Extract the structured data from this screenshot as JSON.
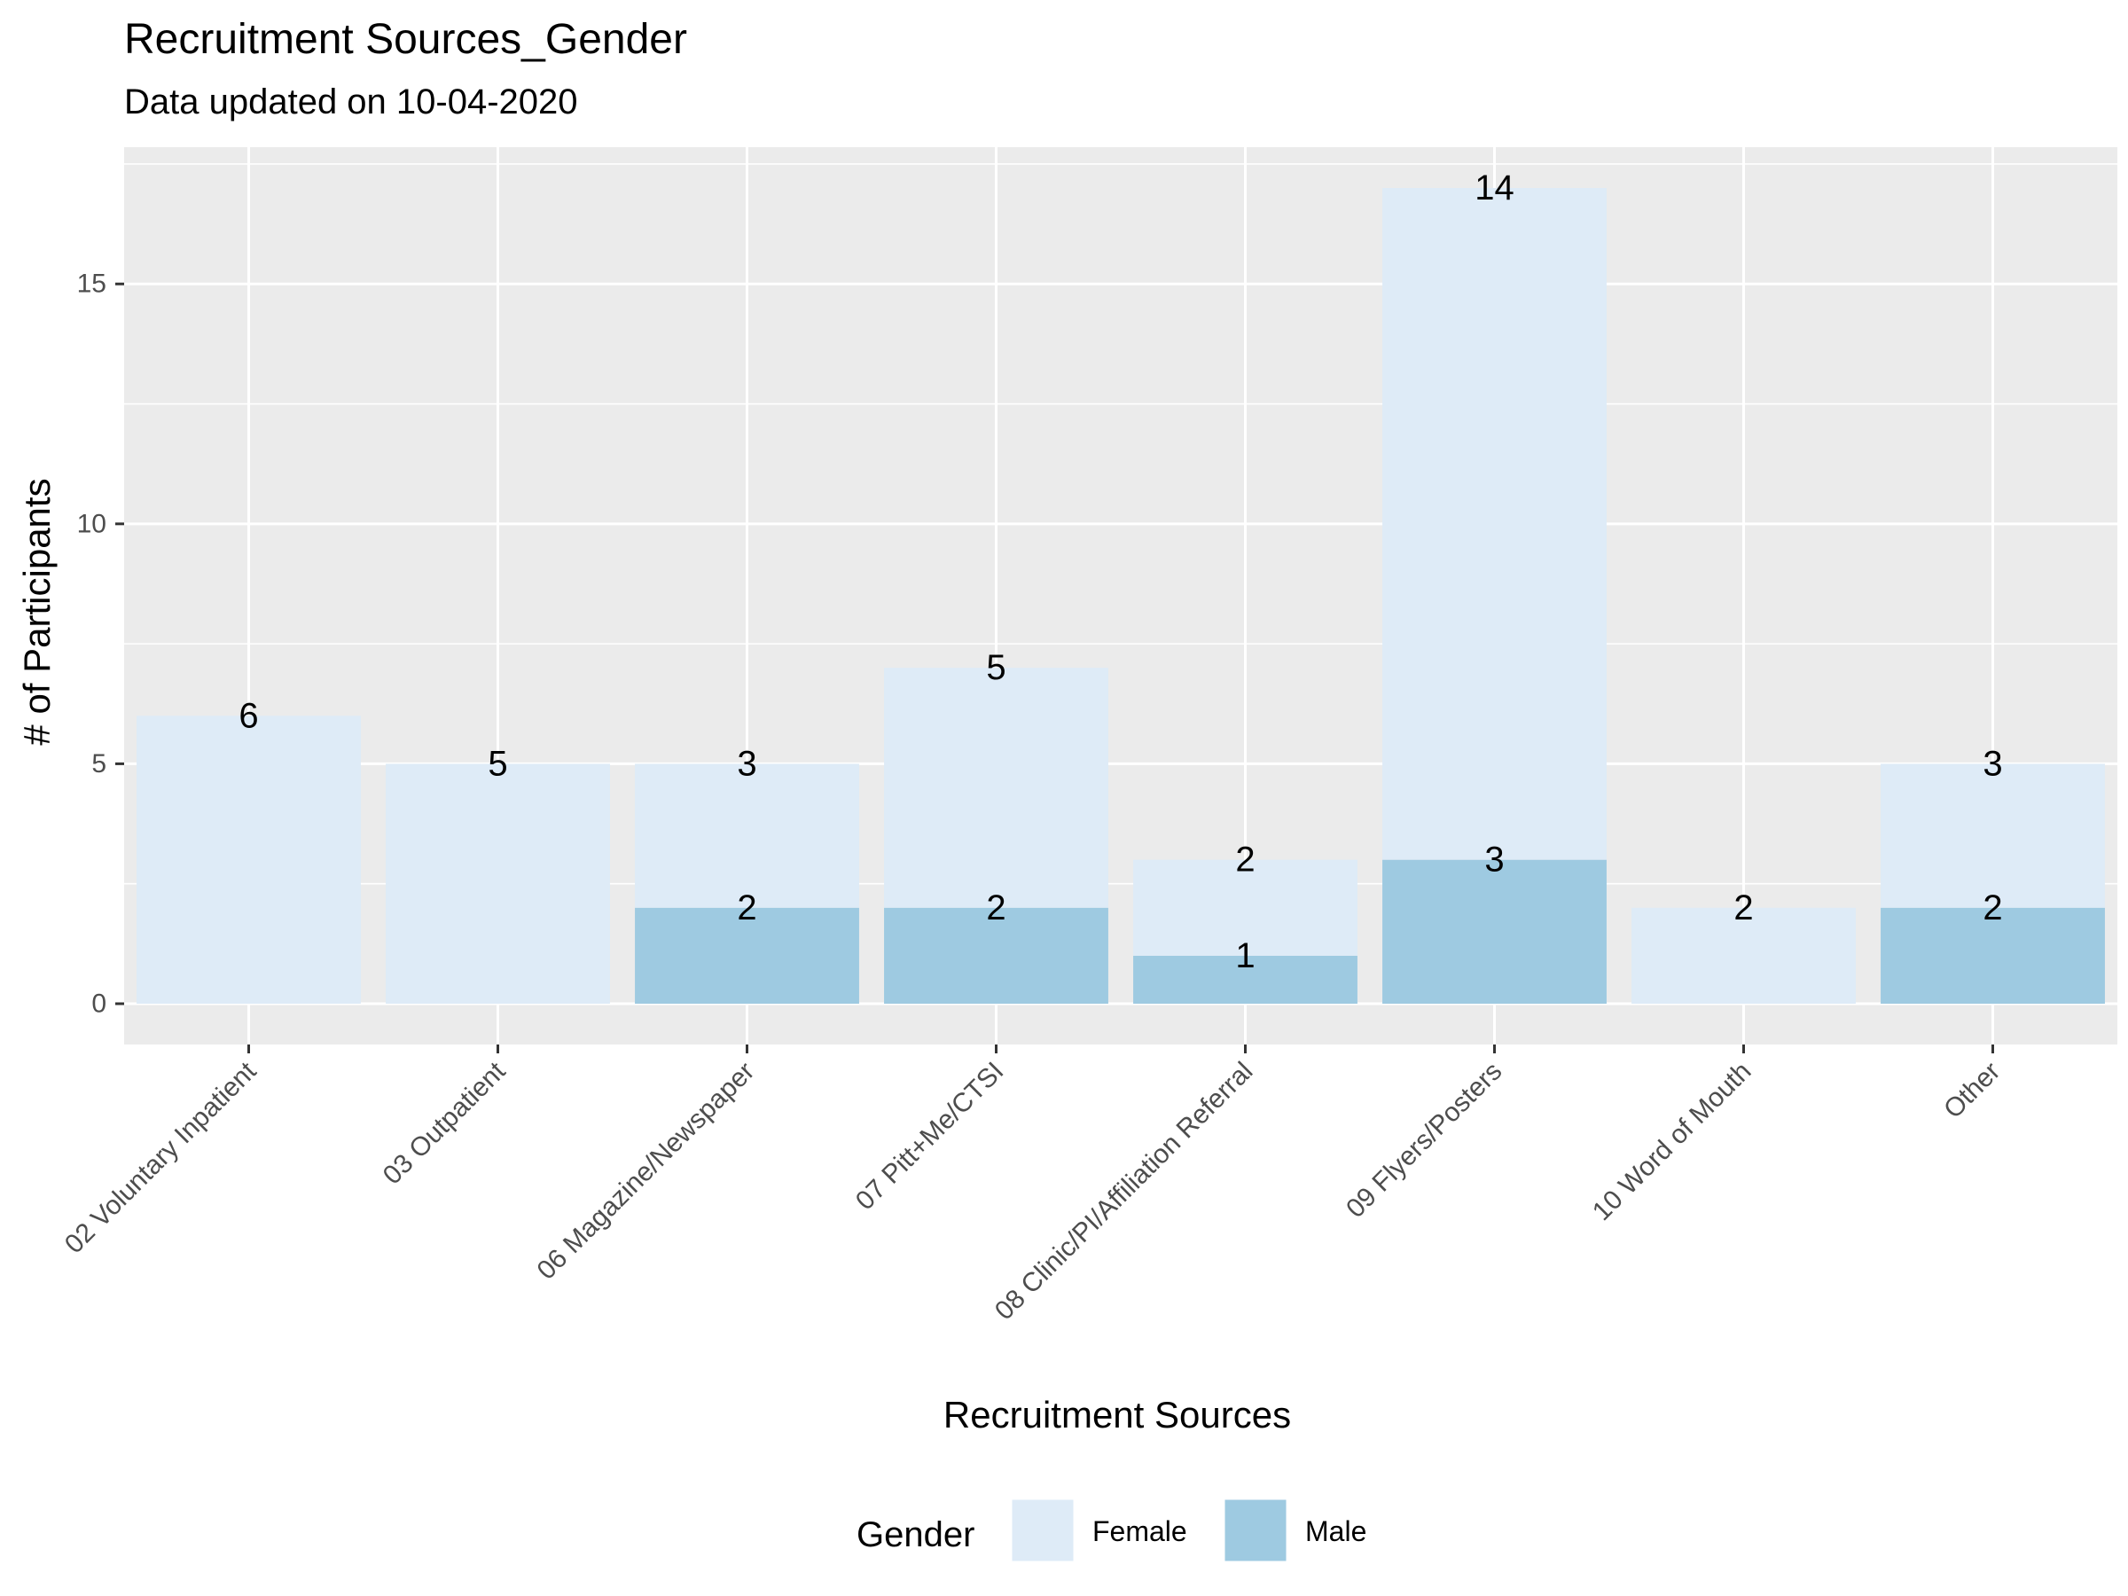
{
  "chart_data": {
    "type": "bar",
    "stacked": true,
    "title": "Recruitment Sources_Gender",
    "subtitle": "Data updated on 10-04-2020",
    "xlabel": "Recruitment Sources",
    "ylabel": "# of Participants",
    "categories": [
      "02 Voluntary Inpatient",
      "03 Outpatient",
      "06 Magazine/Newspaper",
      "07 Pitt+Me/CTSI",
      "08 Clinic/PI/Affiliation Referral",
      "09 Flyers/Posters",
      "10 Word of Mouth",
      "Other"
    ],
    "series": [
      {
        "name": "Male",
        "values": [
          0,
          0,
          2,
          2,
          1,
          3,
          0,
          2
        ],
        "color": "#9ecae1"
      },
      {
        "name": "Female",
        "values": [
          6,
          5,
          3,
          5,
          2,
          14,
          2,
          3
        ],
        "color": "#deebf7"
      }
    ],
    "data_labels": {
      "Male": [
        "",
        "",
        "2",
        "2",
        "1",
        "3",
        "",
        "2"
      ],
      "Female": [
        "6",
        "5",
        "3",
        "5",
        "2",
        "14",
        "2",
        "3"
      ]
    },
    "label_y_values": {
      "Male": [
        null,
        null,
        2,
        2,
        1,
        3,
        null,
        2
      ],
      "Female": [
        6,
        5,
        5,
        7,
        3,
        17,
        2,
        5
      ]
    },
    "yticks": [
      0,
      5,
      10,
      15
    ],
    "ytick_labels": [
      "0",
      "5",
      "10",
      "15"
    ],
    "ylim": [
      -0.85,
      17.85
    ],
    "grid": true,
    "legend": {
      "title": "Gender",
      "position": "bottom",
      "entries": [
        {
          "label": "Female",
          "color": "#deebf7"
        },
        {
          "label": "Male",
          "color": "#9ecae1"
        }
      ]
    },
    "colors": {
      "panel": "#ebebeb",
      "grid_major": "#ffffff",
      "text": "#000000",
      "tick_text": "#4d4d4d"
    }
  }
}
